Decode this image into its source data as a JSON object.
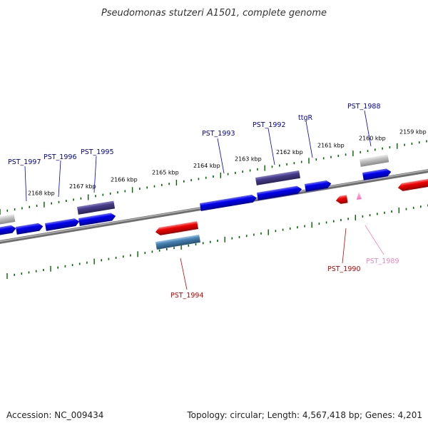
{
  "title": "Pseudomonas stutzeri A1501, complete genome",
  "accession": "Accession: NC_009434",
  "summary": "Topology: circular; Length: 4,567,418 bp; Genes: 4,201",
  "colors": {
    "forward_gene": "#0000ee",
    "reverse_gene": "#ee0000",
    "rna_gene": "#483d8b",
    "reverse_rna_gene": "#4682b4",
    "pseudogene": "#b0b0b0",
    "small_reverse": "#ff88cc",
    "tick": "#006400",
    "backbone": "#808080",
    "label_forward": "#0000aa",
    "label_reverse": "#cc0000",
    "label_faint": "#ee88bb"
  },
  "kbp_ticks": [
    {
      "label": "2159 kbp",
      "pos": 2159
    },
    {
      "label": "2160 kbp",
      "pos": 2160
    },
    {
      "label": "2161 kbp",
      "pos": 2161
    },
    {
      "label": "2162 kbp",
      "pos": 2162
    },
    {
      "label": "2163 kbp",
      "pos": 2163
    },
    {
      "label": "2164 kbp",
      "pos": 2164
    },
    {
      "label": "2165 kbp",
      "pos": 2165
    },
    {
      "label": "2166 kbp",
      "pos": 2166
    },
    {
      "label": "2167 kbp",
      "pos": 2167
    },
    {
      "label": "2168 kbp",
      "pos": 2168
    }
  ],
  "gene_labels": [
    {
      "name": "PST_1997",
      "strand": "forward"
    },
    {
      "name": "PST_1996",
      "strand": "forward"
    },
    {
      "name": "PST_1995",
      "strand": "forward"
    },
    {
      "name": "PST_1993",
      "strand": "forward"
    },
    {
      "name": "PST_1992",
      "strand": "forward"
    },
    {
      "name": "ttgR",
      "strand": "forward"
    },
    {
      "name": "PST_1988",
      "strand": "forward"
    },
    {
      "name": "PST_1994",
      "strand": "reverse"
    },
    {
      "name": "PST_1990",
      "strand": "reverse"
    },
    {
      "name": "PST_1989",
      "strand": "reverse-faint"
    }
  ]
}
